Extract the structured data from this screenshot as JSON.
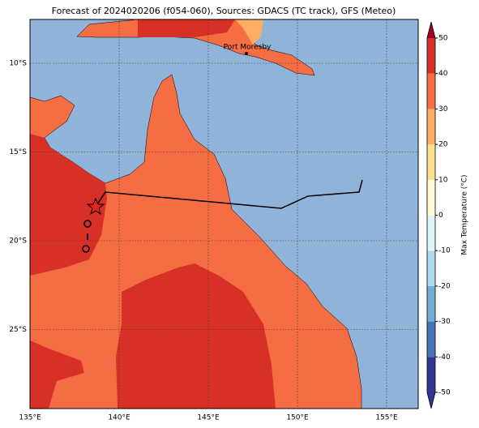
{
  "map": {
    "title": "Forecast of 2024020206 (f054-060), Sources: GDACS (TC track), GFS (Meteo)",
    "lon_labels": [
      "135°E",
      "140°E",
      "145°E",
      "150°E",
      "155°E"
    ],
    "lat_labels": [
      "10°S",
      "15°S",
      "20°S",
      "25°S"
    ],
    "place_labels": [
      "Port Moresby"
    ],
    "colorbar": {
      "label": "Max Temperature (°C)",
      "lim": [
        -50,
        50
      ],
      "ticks": [
        -50,
        -40,
        -30,
        -20,
        -10,
        0,
        10,
        20,
        30,
        40,
        50
      ],
      "colors": [
        "#313695",
        "#4575b4",
        "#74add1",
        "#abd9e9",
        "#e0f3f8",
        "#fffbd4",
        "#fee090",
        "#fdae61",
        "#f46d43",
        "#d73027",
        "#a50026"
      ]
    }
  }
}
